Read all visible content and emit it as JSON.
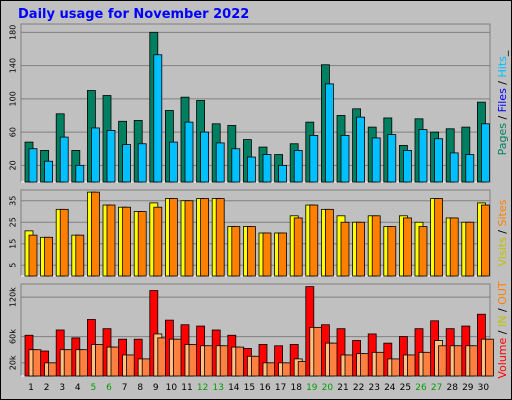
{
  "chart_data": {
    "title": "Daily usage for November 2022",
    "type": "bar",
    "categories": [
      "1",
      "2",
      "3",
      "4",
      "5",
      "6",
      "7",
      "8",
      "9",
      "10",
      "11",
      "12",
      "13",
      "14",
      "15",
      "16",
      "17",
      "18",
      "19",
      "20",
      "21",
      "22",
      "23",
      "24",
      "25",
      "26",
      "27",
      "28",
      "29",
      "30"
    ],
    "weekend_days": [
      "5",
      "6",
      "12",
      "13",
      "19",
      "20",
      "26",
      "27"
    ],
    "colors": {
      "pages": "#008060",
      "files": "#0000ff",
      "hits": "#00c0ff",
      "visits": "#ffff00",
      "sites": "#ff8000",
      "kbytes": "#ff0000",
      "in": "#ffc080",
      "out": "#ff8040",
      "weekday_label": "#000000",
      "weekend_label": "#00a000",
      "title": "#0000ff"
    },
    "panels": [
      {
        "type": "bar",
        "ylim": [
          0,
          190
        ],
        "yticks": [
          "20",
          "60",
          "100",
          "140",
          "180"
        ],
        "series": [
          {
            "name": "Pages",
            "values": [
              48,
              38,
              82,
              38,
              110,
              104,
              73,
              74,
              180,
              86,
              102,
              98,
              70,
              68,
              51,
              42,
              33,
              46,
              72,
              141,
              80,
              88,
              66,
              77,
              44,
              76,
              60,
              64,
              66,
              96
            ]
          },
          {
            "name": "Hits",
            "values": [
              40,
              25,
              54,
              20,
              65,
              62,
              45,
              46,
              153,
              48,
              72,
              60,
              47,
              40,
              30,
              33,
              20,
              38,
              56,
              118,
              56,
              78,
              53,
              57,
              38,
              63,
              52,
              35,
              33,
              70
            ]
          }
        ]
      },
      {
        "type": "bar",
        "ylim": [
          0,
          40
        ],
        "yticks": [
          "5",
          "15",
          "25",
          "35"
        ],
        "series": [
          {
            "name": "Visits",
            "values": [
              21,
              18,
              31,
              19,
              39,
              33,
              32,
              30,
              34,
              36,
              35,
              36,
              36,
              23,
              23,
              20,
              20,
              28,
              33,
              31,
              28,
              25,
              28,
              23,
              28,
              25,
              36,
              27,
              25,
              34
            ]
          },
          {
            "name": "Sites",
            "values": [
              19,
              18,
              31,
              19,
              39,
              33,
              32,
              30,
              32,
              36,
              35,
              36,
              36,
              23,
              23,
              20,
              20,
              27,
              33,
              31,
              25,
              25,
              28,
              23,
              27,
              23,
              36,
              27,
              25,
              33
            ]
          }
        ]
      },
      {
        "type": "bar",
        "ylim": [
          0,
          140000
        ],
        "yticks": [
          "20k",
          "60k",
          "120k"
        ],
        "series": [
          {
            "name": "Volume",
            "values": [
              62000,
              38000,
              70000,
              58000,
              86000,
              72000,
              56000,
              56000,
              130000,
              85000,
              78000,
              76000,
              70000,
              62000,
              42000,
              48000,
              46000,
              48000,
              136000,
              78000,
              72000,
              54000,
              64000,
              50000,
              60000,
              72000,
              84000,
              72000,
              76000,
              94000
            ]
          },
          {
            "name": "In",
            "values": [
              40000,
              20000,
              40000,
              40000,
              48000,
              44000,
              32000,
              26000,
              64000,
              56000,
              48000,
              46000,
              46000,
              44000,
              30000,
              20000,
              20000,
              26000,
              74000,
              50000,
              32000,
              34000,
              36000,
              26000,
              32000,
              36000,
              54000,
              46000,
              46000,
              56000
            ]
          },
          {
            "name": "Out",
            "values": [
              40000,
              20000,
              40000,
              40000,
              48000,
              44000,
              32000,
              26000,
              58000,
              56000,
              48000,
              46000,
              46000,
              44000,
              30000,
              20000,
              20000,
              22000,
              74000,
              50000,
              32000,
              34000,
              36000,
              26000,
              32000,
              36000,
              46000,
              46000,
              46000,
              56000
            ]
          }
        ]
      }
    ],
    "side_labels": {
      "panel1": [
        {
          "text": "Pages",
          "color": "#008060"
        },
        {
          "text": " / ",
          "color": "#000000"
        },
        {
          "text": "Files",
          "color": "#0000ff"
        },
        {
          "text": " / ",
          "color": "#000000"
        },
        {
          "text": "Hits",
          "color": "#00c0ff"
        },
        {
          "text": "_",
          "color": "#000000"
        }
      ],
      "panel2": [
        {
          "text": "Visits",
          "color": "#c0c000"
        },
        {
          "text": " / ",
          "color": "#000000"
        },
        {
          "text": "Sites",
          "color": "#ff8000"
        }
      ],
      "panel3": [
        {
          "text": "Volume",
          "color": "#ff0000"
        },
        {
          "text": "  /  ",
          "color": "#000000"
        },
        {
          "text": "IN",
          "color": "#c0c000"
        },
        {
          "text": "  /  ",
          "color": "#000000"
        },
        {
          "text": "OUT",
          "color": "#ff8000"
        }
      ]
    }
  }
}
